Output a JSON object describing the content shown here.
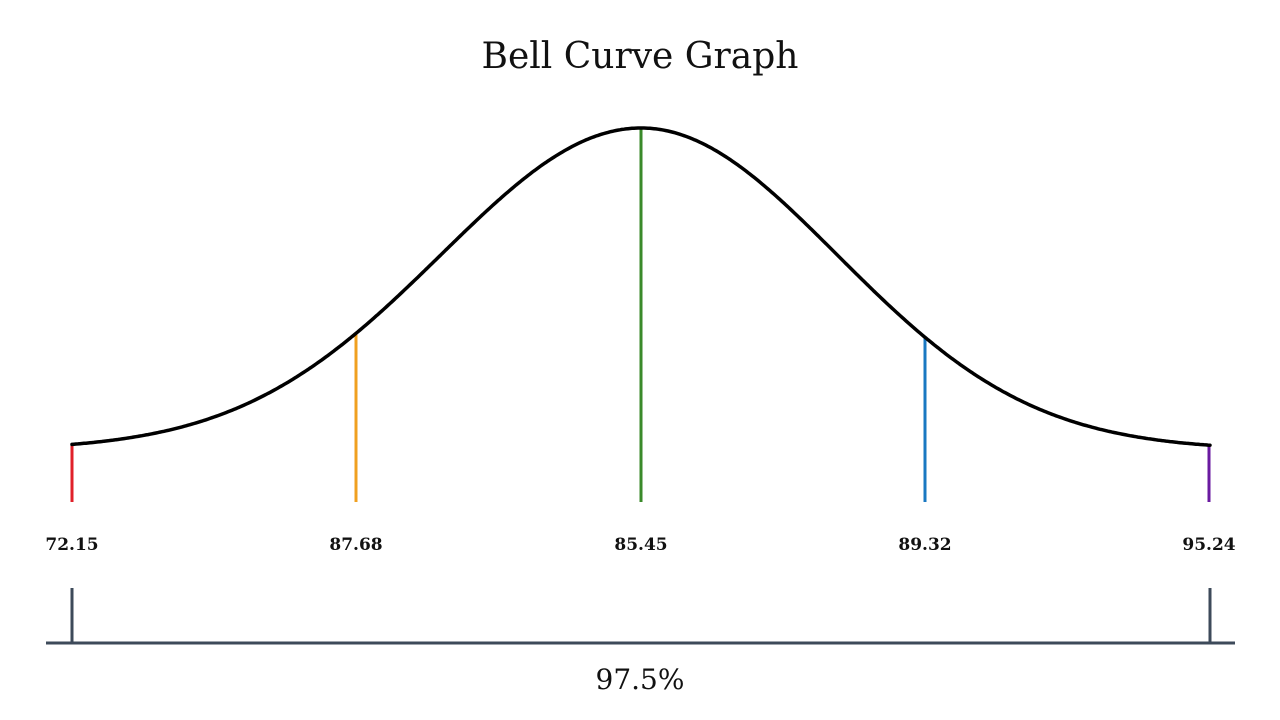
{
  "chart_data": {
    "type": "line",
    "title": "Bell Curve Graph",
    "xlabel": "",
    "ylabel": "",
    "grid": false,
    "legend": "none",
    "markers": [
      {
        "label": "72.15",
        "color": "#e0202a"
      },
      {
        "label": "87.68",
        "color": "#f0a020"
      },
      {
        "label": "85.45",
        "color": "#3a8a2a"
      },
      {
        "label": "89.32",
        "color": "#1a78c2"
      },
      {
        "label": "95.24",
        "color": "#6a1aa0"
      }
    ],
    "range_label": "97.5%"
  }
}
